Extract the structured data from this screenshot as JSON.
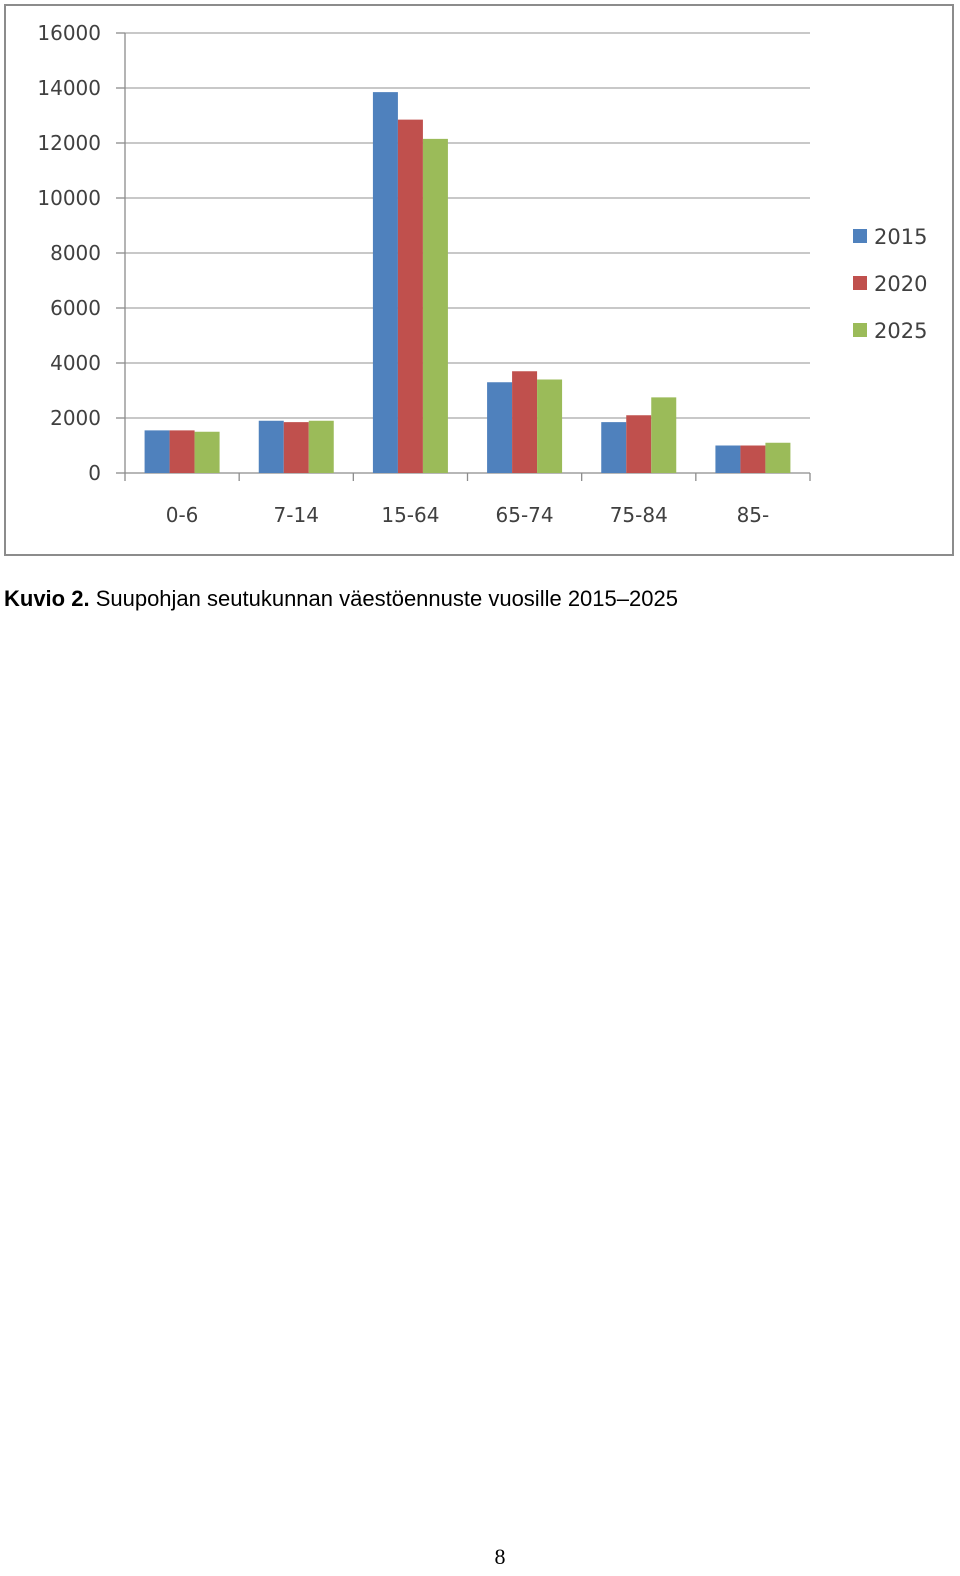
{
  "chart_data": {
    "type": "bar",
    "title": "",
    "xlabel": "",
    "ylabel": "",
    "categories": [
      "0-6",
      "7-14",
      "15-64",
      "65-74",
      "75-84",
      "85-"
    ],
    "series": [
      {
        "name": "2015",
        "color": "#4F81BD",
        "values": [
          1550,
          1900,
          13850,
          3300,
          1850,
          1000
        ]
      },
      {
        "name": "2020",
        "color": "#C0504D",
        "values": [
          1550,
          1850,
          12850,
          3700,
          2100,
          1000
        ]
      },
      {
        "name": "2025",
        "color": "#9BBB59",
        "values": [
          1500,
          1900,
          12150,
          3400,
          2750,
          1100
        ]
      }
    ],
    "ylim": [
      0,
      16000
    ],
    "yticks": [
      0,
      2000,
      4000,
      6000,
      8000,
      10000,
      12000,
      14000,
      16000
    ],
    "grid": true,
    "legend_position": "right"
  },
  "caption": {
    "label": "Kuvio 2.",
    "text": " Suupohjan seutukunnan väestöennuste vuosille 2015–2025"
  },
  "page_number": "8"
}
